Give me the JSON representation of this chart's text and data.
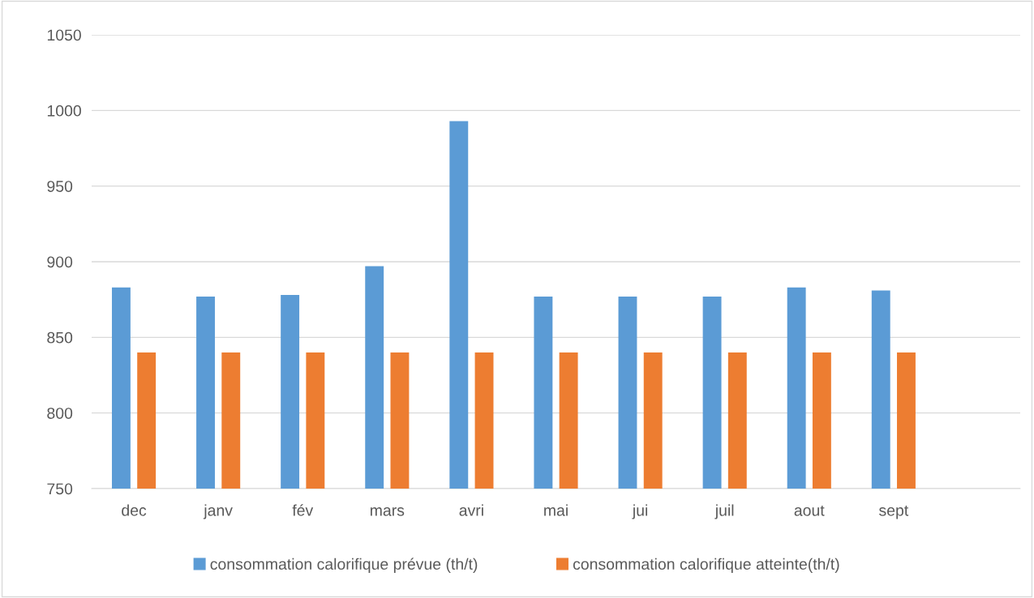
{
  "chart_data": {
    "type": "bar",
    "categories": [
      "dec",
      "janv",
      "fév",
      "mars",
      "avri",
      "mai",
      "jui",
      "juil",
      "aout",
      "sept",
      null
    ],
    "series": [
      {
        "name": "consommation calorifique prévue (th/t)",
        "color": "#5b9bd5",
        "values": [
          883,
          877,
          878,
          897,
          993,
          877,
          877,
          877,
          883,
          881,
          null
        ]
      },
      {
        "name": "consommation calorifique atteinte(th/t)",
        "color": "#ed7d31",
        "values": [
          840,
          840,
          840,
          840,
          840,
          840,
          840,
          840,
          840,
          840,
          null
        ]
      }
    ],
    "ylim": [
      750,
      1050
    ],
    "yticks": [
      750,
      800,
      850,
      900,
      950,
      1000,
      1050
    ],
    "grid": "y",
    "legend": "bottom"
  }
}
